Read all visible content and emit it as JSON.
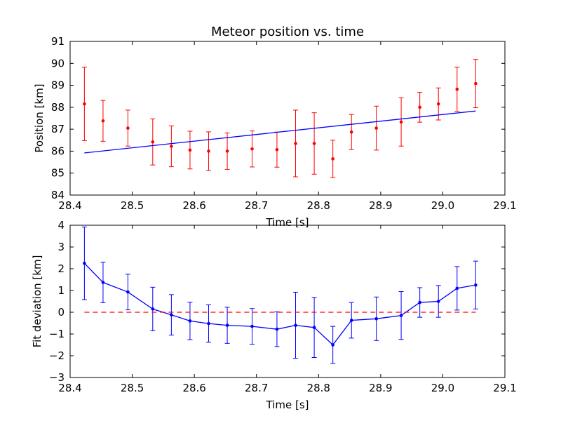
{
  "chart_data": [
    {
      "type": "scatter",
      "title": "Meteor position vs. time",
      "xlabel": "Time [s]",
      "ylabel": "Position [km]",
      "xlim": [
        28.4,
        29.1
      ],
      "ylim": [
        84,
        91
      ],
      "xticks": [
        "28.4",
        "28.5",
        "28.6",
        "28.7",
        "28.8",
        "28.9",
        "29.0",
        "29.1"
      ],
      "yticks": [
        "84",
        "85",
        "86",
        "87",
        "88",
        "89",
        "90",
        "91"
      ],
      "grid": false,
      "series": [
        {
          "color": "#ff0000",
          "marker": "point",
          "x": [
            28.423,
            28.453,
            28.493,
            28.533,
            28.563,
            28.593,
            28.623,
            28.653,
            28.693,
            28.733,
            28.763,
            28.793,
            28.823,
            28.853,
            28.893,
            28.933,
            28.963,
            28.993,
            29.023,
            29.053
          ],
          "y": [
            88.15,
            87.38,
            87.05,
            86.42,
            86.22,
            86.05,
            86.0,
            86.0,
            86.1,
            86.07,
            86.35,
            86.35,
            85.65,
            86.87,
            87.05,
            87.33,
            88.0,
            88.15,
            88.82,
            89.08
          ],
          "yerr": [
            1.67,
            0.93,
            0.82,
            1.05,
            0.93,
            0.86,
            0.88,
            0.83,
            0.82,
            0.8,
            1.52,
            1.4,
            0.85,
            0.8,
            1.0,
            1.1,
            0.68,
            0.73,
            1.0,
            1.1
          ]
        },
        {
          "color": "#0000ff",
          "marker": "none",
          "line": "solid",
          "x": [
            28.423,
            29.053
          ],
          "y": [
            85.92,
            87.83
          ]
        }
      ]
    },
    {
      "type": "line",
      "title": "",
      "xlabel": "Time [s]",
      "ylabel": "Fit deviation [km]",
      "xlim": [
        28.4,
        29.1
      ],
      "ylim": [
        -3,
        4
      ],
      "xticks": [
        "28.4",
        "28.5",
        "28.6",
        "28.7",
        "28.8",
        "28.9",
        "29.0",
        "29.1"
      ],
      "yticks": [
        "−3",
        "−2",
        "−1",
        "0",
        "1",
        "2",
        "3",
        "4"
      ],
      "grid": false,
      "series": [
        {
          "color": "#0000ff",
          "marker": "point",
          "line": "solid",
          "x": [
            28.423,
            28.453,
            28.493,
            28.533,
            28.563,
            28.593,
            28.623,
            28.653,
            28.693,
            28.733,
            28.763,
            28.793,
            28.823,
            28.853,
            28.893,
            28.933,
            28.963,
            28.993,
            29.023,
            29.053
          ],
          "y": [
            2.25,
            1.37,
            0.93,
            0.15,
            -0.12,
            -0.4,
            -0.52,
            -0.6,
            -0.65,
            -0.78,
            -0.6,
            -0.7,
            -1.5,
            -0.37,
            -0.3,
            -0.15,
            0.45,
            0.5,
            1.1,
            1.25
          ],
          "yerr": [
            1.67,
            0.93,
            0.82,
            1.0,
            0.93,
            0.86,
            0.86,
            0.83,
            0.82,
            0.8,
            1.52,
            1.38,
            0.85,
            0.82,
            1.0,
            1.1,
            0.68,
            0.73,
            1.0,
            1.1
          ]
        },
        {
          "color": "#ff0000",
          "marker": "none",
          "line": "dashed",
          "x": [
            28.423,
            29.053
          ],
          "y": [
            0,
            0
          ]
        }
      ]
    }
  ]
}
